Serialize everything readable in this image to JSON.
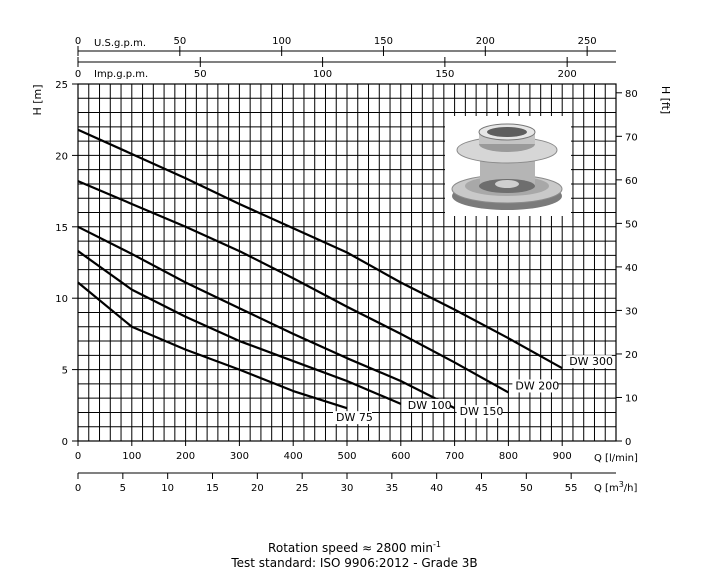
{
  "chart_data": {
    "type": "line",
    "xlabel_lpm": "Q [l/min]",
    "xlabel_m3h_prefix": "Q [m",
    "xlabel_m3h_sup": "3",
    "xlabel_m3h_suffix": "/h]",
    "ylabel_m": "H [m]",
    "ylabel_ft": "H [ft]",
    "top_axis_us_label": "U.S.g.p.m.",
    "top_axis_imp_label": "Imp.g.p.m.",
    "xlim": [
      0,
      1000
    ],
    "ylim": [
      0,
      25
    ],
    "grid": true,
    "lpm_ticks": [
      0,
      100,
      200,
      300,
      400,
      500,
      600,
      700,
      800,
      900
    ],
    "m3h_ticks": [
      0,
      5,
      10,
      15,
      20,
      25,
      30,
      35,
      40,
      45,
      50,
      55
    ],
    "us_gpm_ticks": [
      0,
      50,
      100,
      150,
      200,
      250
    ],
    "imp_gpm_ticks": [
      0,
      50,
      100,
      150,
      200
    ],
    "h_m_ticks": [
      0,
      5,
      10,
      15,
      20,
      25
    ],
    "h_ft_ticks": [
      0,
      10,
      20,
      30,
      40,
      50,
      60,
      70,
      80
    ],
    "series": [
      {
        "name": "DW 75",
        "x": [
          0,
          100,
          200,
          300,
          400,
          500
        ],
        "y": [
          11.1,
          8.0,
          6.4,
          5.0,
          3.5,
          2.3
        ]
      },
      {
        "name": "DW 100",
        "x": [
          0,
          100,
          200,
          300,
          400,
          500,
          600
        ],
        "y": [
          13.3,
          10.6,
          8.7,
          7.0,
          5.6,
          4.2,
          2.6
        ]
      },
      {
        "name": "DW 150",
        "x": [
          0,
          100,
          200,
          300,
          400,
          500,
          600,
          700
        ],
        "y": [
          15.0,
          13.1,
          11.1,
          9.3,
          7.5,
          5.8,
          4.2,
          2.3
        ]
      },
      {
        "name": "DW 200",
        "x": [
          0,
          100,
          200,
          300,
          400,
          500,
          600,
          700,
          800
        ],
        "y": [
          18.2,
          16.6,
          15.0,
          13.3,
          11.4,
          9.4,
          7.5,
          5.5,
          3.4
        ]
      },
      {
        "name": "DW 300",
        "x": [
          0,
          100,
          200,
          300,
          400,
          500,
          600,
          700,
          800,
          900
        ],
        "y": [
          21.8,
          20.1,
          18.4,
          16.6,
          14.9,
          13.2,
          11.1,
          9.2,
          7.2,
          5.1
        ]
      }
    ]
  },
  "footer": {
    "speed_prefix": "Rotation speed ≈ 2800 min",
    "speed_sup": "-1",
    "standard": "Test standard: ISO 9906:2012 - Grade 3B"
  },
  "product_image": {
    "icon": "stainless-impeller-photo"
  }
}
